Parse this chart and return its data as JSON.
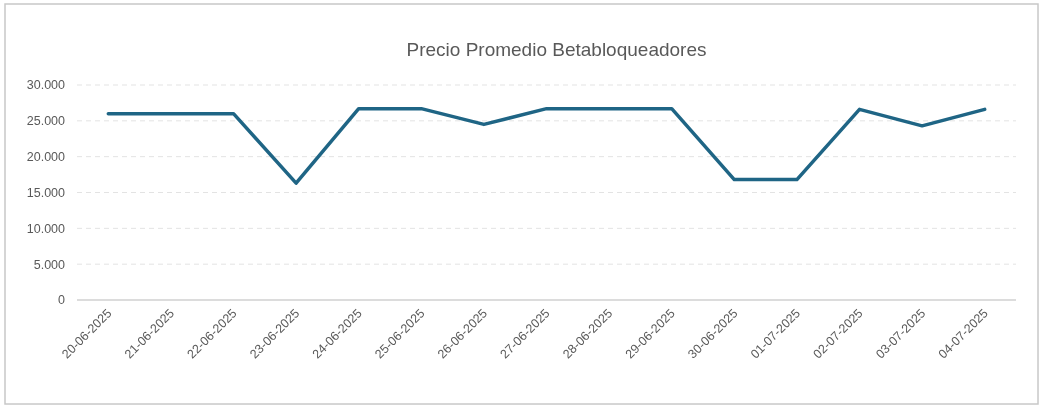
{
  "chart_data": {
    "type": "line",
    "title": "Precio Promedio Betabloqueadores",
    "categories": [
      "20-06-2025",
      "21-06-2025",
      "22-06-2025",
      "23-06-2025",
      "24-06-2025",
      "25-06-2025",
      "26-06-2025",
      "27-06-2025",
      "28-06-2025",
      "29-06-2025",
      "30-06-2025",
      "01-07-2025",
      "02-07-2025",
      "03-07-2025",
      "04-07-2025"
    ],
    "series": [
      {
        "color": "#1f6585",
        "values": [
          26000,
          26000,
          26000,
          16300,
          26700,
          26700,
          24500,
          26700,
          26700,
          26700,
          16800,
          16800,
          26600,
          24300,
          26600
        ]
      }
    ],
    "ylim": [
      0,
      30000
    ],
    "yticks": [
      {
        "value": 0,
        "label": "0"
      },
      {
        "value": 5000,
        "label": "5.000"
      },
      {
        "value": 10000,
        "label": "10.000"
      },
      {
        "value": 15000,
        "label": "15.000"
      },
      {
        "value": 20000,
        "label": "20.000"
      },
      {
        "value": 25000,
        "label": "25.000"
      },
      {
        "value": 30000,
        "label": "30.000"
      }
    ],
    "grid": "y",
    "marker": "none",
    "line_style": "solid"
  }
}
